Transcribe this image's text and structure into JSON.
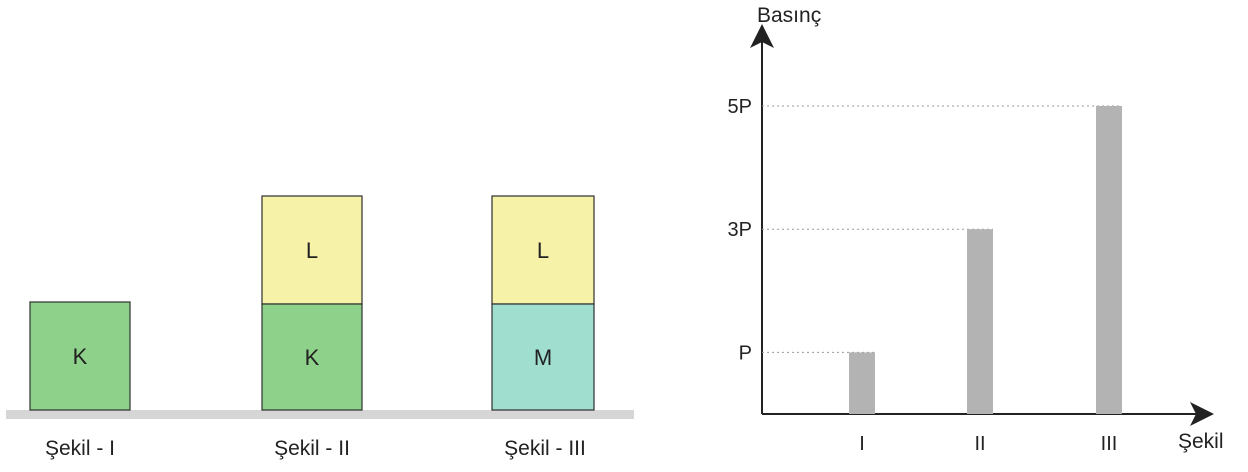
{
  "colors": {
    "K": "#8ed18a",
    "L": "#f6f3a8",
    "M": "#a0ded0",
    "ground": "#d6d6d6",
    "bar": "#b3b3b3",
    "block_border": "#2e2e2e",
    "axis": "#222222"
  },
  "figures": {
    "fig1": {
      "label": "Şekil - I",
      "blocks": [
        "K"
      ]
    },
    "fig2": {
      "label": "Şekil - II",
      "blocks": [
        "K",
        "L"
      ]
    },
    "fig3": {
      "label": "Şekil - III",
      "blocks": [
        "M",
        "L"
      ]
    }
  },
  "chart_data": {
    "type": "bar",
    "ylabel": "Basınç",
    "xlabel": "Şekil",
    "categories": [
      "I",
      "II",
      "III"
    ],
    "values": [
      1,
      3,
      5
    ],
    "ytick_labels": [
      "P",
      "3P",
      "5P"
    ],
    "ytick_values": [
      1,
      3,
      5
    ],
    "ylim": [
      0,
      6
    ],
    "guide_lines": "dotted"
  }
}
